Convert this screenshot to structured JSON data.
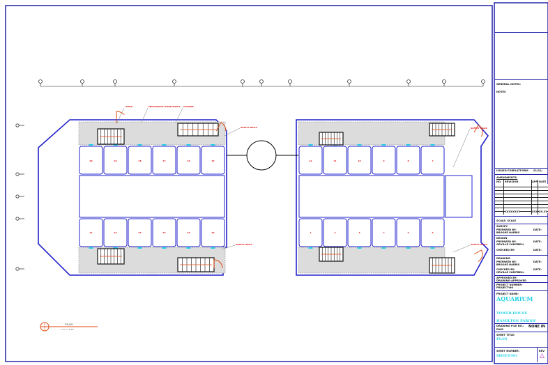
{
  "drawing": {
    "annotations": {
      "door": "DOOR",
      "mech_shaft": "MECHANICAL RISER SHAFT",
      "column": "COLUMN",
      "safety_rails": "SAFETY RAILS"
    },
    "left_rooms_top": [
      "20",
      "19",
      "18",
      "17",
      "16",
      "15"
    ],
    "left_rooms_bottom": [
      "21",
      "22",
      "23",
      "24",
      "25",
      "26"
    ],
    "right_rooms_top": [
      "12",
      "11",
      "10",
      "9",
      "8",
      "7"
    ],
    "right_rooms_bottom": [
      "1",
      "2",
      "3",
      "4",
      "5",
      "6"
    ],
    "plan_label": "PLAN",
    "plan_scale": "1'-0\" = 1/16\"",
    "colors": {
      "wall": "#2222cc",
      "annotation": "#e01010",
      "door": "#e04a10",
      "accent": "#22d0e6",
      "floor": "#dcdcdc"
    }
  },
  "title_block": {
    "general_notes": "GENERAL NOTES:",
    "notes_value": "NOTES",
    "issued_for": "ISSUED FOR:",
    "issued_value": "PLATFORM",
    "issued_date": "01/01/",
    "amendments": "AMENDMENTS:",
    "col_no": "NO.",
    "col_revision": "REVISION",
    "col_app": "APP",
    "col_date": "DATE",
    "rev_row": "XXXXXXXX",
    "rev_app": "XXX",
    "rev_date": "XX.XX",
    "scale": "SCALE: SCALE",
    "survey": "SURVEY",
    "prepared_by": "PREPARED BY:",
    "survey_preparer": "BROOKE HARRIS",
    "date": "DATE:",
    "design": "DESIGN",
    "design_preparer": "ORVILLE CAMPBELL",
    "checked_by": "CHECKED BY:",
    "drawing": "DRAWING",
    "drawing_preparer": "BROOKE HARRIS",
    "drawing_checker": "ORVILLE CAMPBELL",
    "approved_by": "APPROVED BY:",
    "approved_value": "DRAWING-APPROVED",
    "project_number_label": "PROJECT NUMBER:",
    "project_number": "PROJECT-NO",
    "project_name_label": "PROJECT NAME:",
    "project_name": "AQUARIUM",
    "client1": "TOWER HOUSE",
    "client2": "HAMILTON PARISH",
    "drawing_file_label": "DRAWING FILE NO.:",
    "drawing_file": "DWG",
    "none_label": "NONE IN",
    "sheet_title_label": "SHEET TITLE:",
    "sheet_title": "PLAN",
    "sheet_number_label": "SHEET NUMBER:",
    "sheet_number": "SHEET-NO",
    "rev_label": "REV"
  }
}
